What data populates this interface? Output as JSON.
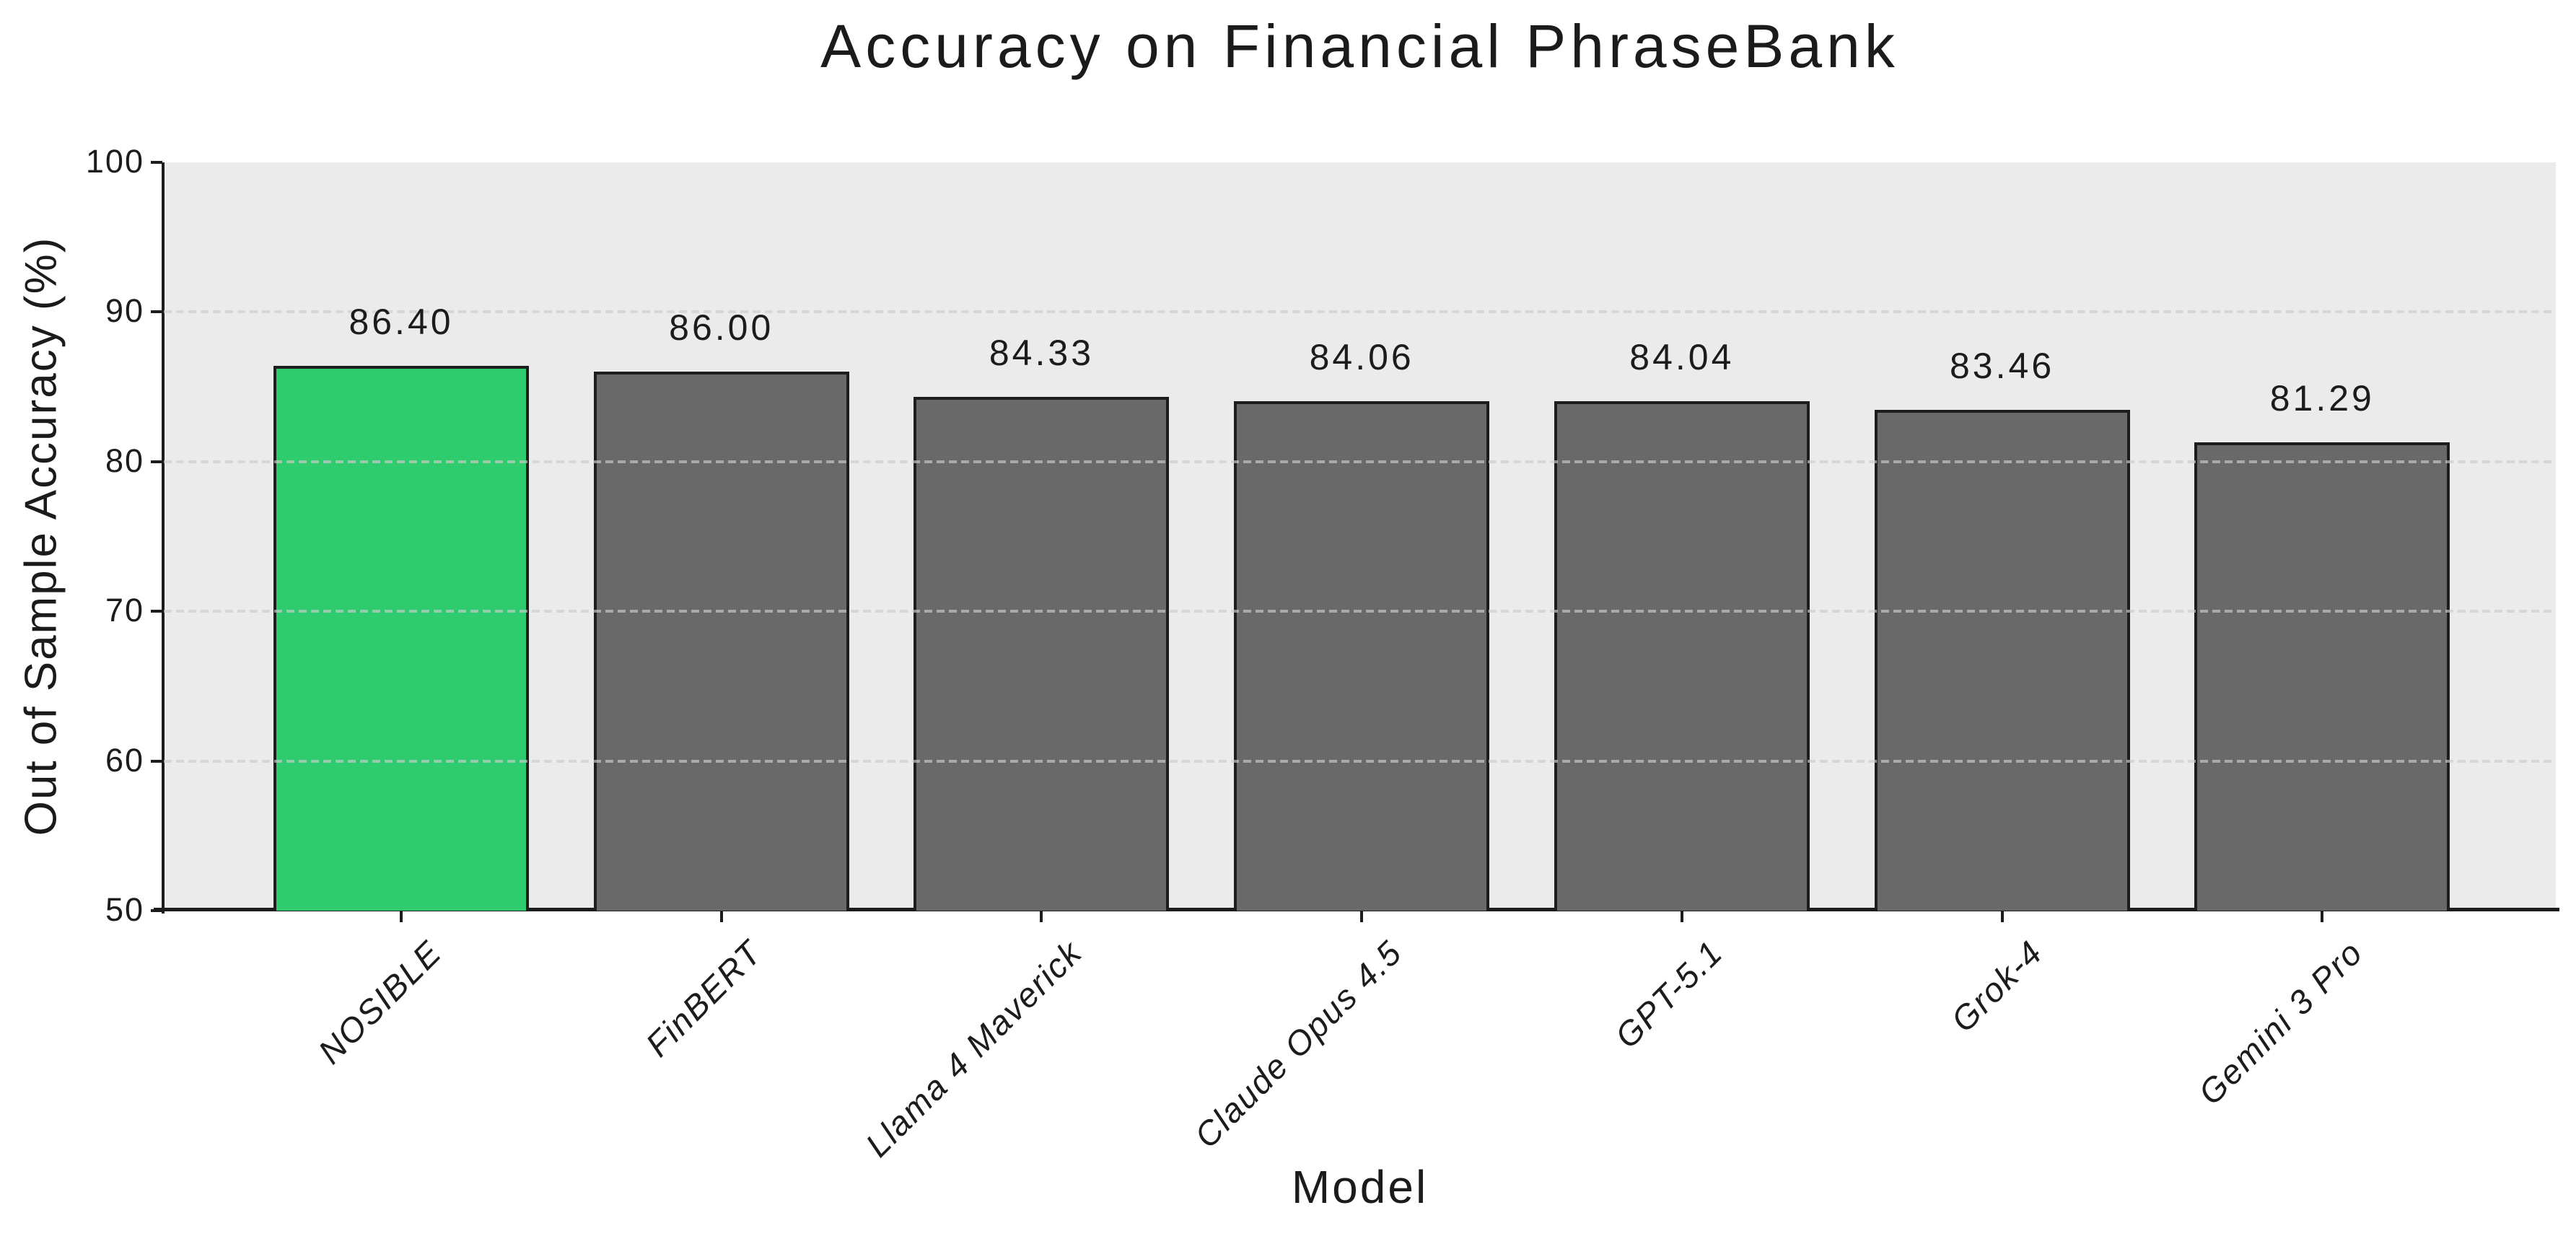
{
  "chart_data": {
    "type": "bar",
    "title": "Accuracy on Financial PhraseBank",
    "xlabel": "Model",
    "ylabel": "Out of Sample Accuracy (%)",
    "ylim": [
      50,
      100
    ],
    "ytick_values": [
      50,
      60,
      70,
      80,
      90,
      100
    ],
    "ytick_labels": [
      "50",
      "60",
      "70",
      "80",
      "90",
      "100"
    ],
    "grid_values": [
      60,
      70,
      80,
      90
    ],
    "grid_style": "dashed",
    "legend": "none",
    "categories": [
      "NOSIBLE",
      "FinBERT",
      "Llama 4 Maverick",
      "Claude Opus 4.5",
      "GPT-5.1",
      "Grok-4",
      "Gemini 3 Pro"
    ],
    "values": [
      86.4,
      86.0,
      84.33,
      84.06,
      84.04,
      83.46,
      81.29
    ],
    "value_labels": [
      "86.40",
      "86.00",
      "84.33",
      "84.06",
      "84.04",
      "83.46",
      "81.29"
    ],
    "bar_colors": [
      "#2ecc6e",
      "#696969",
      "#696969",
      "#696969",
      "#696969",
      "#696969",
      "#696969"
    ],
    "colors": {
      "highlight_bar": "#2ecc6e",
      "default_bar": "#696969",
      "bar_border": "#1d1d1d",
      "plot_background": "#ebebeb",
      "figure_background": "#ffffff",
      "gridline": "rgba(204,204,204,0.65)",
      "text": "#1c1c1c"
    }
  }
}
